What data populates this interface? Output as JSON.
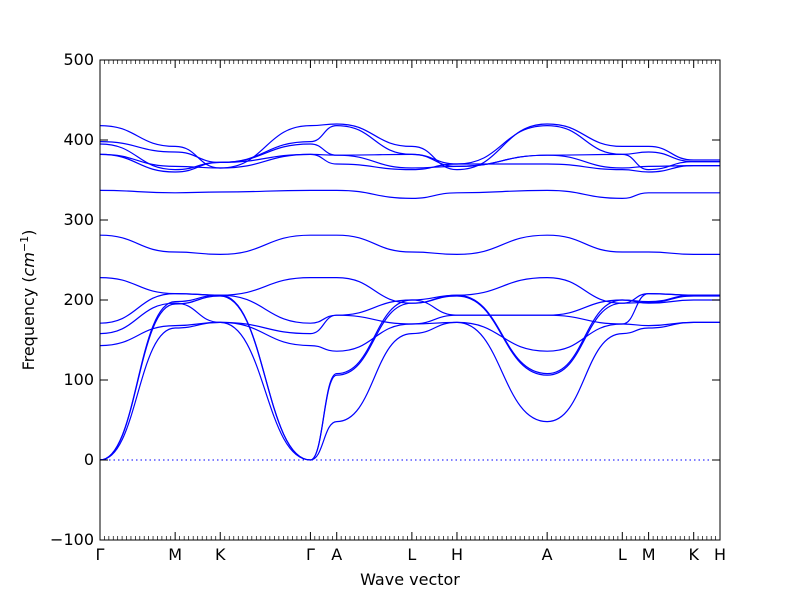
{
  "chart_data": {
    "type": "line",
    "title": "",
    "xlabel": "Wave vector",
    "ylabel": "Frequency ($cm^{-1}$)",
    "ylabel_text": "Frequency (",
    "ylabel_unit": "cm",
    "ylabel_exp": "−1",
    "ylabel_close": ")",
    "ylim": [
      -100,
      500
    ],
    "yticks": [
      -100,
      0,
      100,
      200,
      300,
      400,
      500
    ],
    "grid": false,
    "legend": "none",
    "color": "#0000ff",
    "x_ticks": [
      {
        "label": "Γ",
        "x": 0.0
      },
      {
        "label": "M",
        "x": 0.2
      },
      {
        "label": "K",
        "x": 0.32
      },
      {
        "label": "Γ",
        "x": 0.56
      },
      {
        "label": "A",
        "x": 0.63
      },
      {
        "label": "L",
        "x": 0.83
      },
      {
        "label": "H",
        "x": 0.95
      },
      {
        "label": "A",
        "x": 1.19
      },
      {
        "label": "L",
        "x": 1.39
      },
      {
        "label": "M",
        "x": 1.46
      },
      {
        "label": "K",
        "x": 1.58
      },
      {
        "label": "H",
        "x": 1.65
      }
    ],
    "x": [
      0.0,
      0.2,
      0.32,
      0.56,
      0.63,
      0.83,
      0.95,
      1.19,
      1.39,
      1.46,
      1.58,
      1.65
    ],
    "series": [
      {
        "values": [
          0,
          165,
          172,
          0,
          48,
          158,
          172,
          48,
          158,
          165,
          172,
          172
        ]
      },
      {
        "values": [
          0,
          195,
          205,
          0,
          106,
          196,
          205,
          106,
          196,
          197,
          205,
          205
        ]
      },
      {
        "values": [
          0,
          198,
          206,
          0,
          108,
          200,
          206,
          108,
          200,
          198,
          206,
          206
        ]
      },
      {
        "values": [
          143,
          168,
          172,
          143,
          136,
          170,
          172,
          136,
          170,
          168,
          172,
          172
        ]
      },
      {
        "values": [
          158,
          196,
          172,
          158,
          181,
          200,
          181,
          181,
          200,
          196,
          200,
          200
        ]
      },
      {
        "values": [
          171,
          208,
          206,
          171,
          181,
          170,
          181,
          181,
          170,
          208,
          206,
          206
        ]
      },
      {
        "values": [
          228,
          208,
          206,
          228,
          228,
          196,
          206,
          228,
          196,
          208,
          206,
          206
        ]
      },
      {
        "values": [
          281,
          260,
          257,
          281,
          281,
          260,
          257,
          281,
          260,
          260,
          257,
          257
        ]
      },
      {
        "values": [
          337,
          334,
          335,
          337,
          337,
          327,
          334,
          337,
          327,
          334,
          334,
          334
        ]
      },
      {
        "values": [
          382,
          360,
          372,
          382,
          370,
          363,
          370,
          370,
          363,
          360,
          368,
          368
        ]
      },
      {
        "values": [
          382,
          367,
          365,
          382,
          381,
          365,
          367,
          381,
          365,
          367,
          368,
          368
        ]
      },
      {
        "values": [
          395,
          363,
          372,
          395,
          381,
          382,
          367,
          381,
          382,
          363,
          373,
          373
        ]
      },
      {
        "values": [
          398,
          385,
          372,
          398,
          418,
          382,
          370,
          418,
          382,
          385,
          373,
          373
        ]
      },
      {
        "values": [
          418,
          392,
          365,
          418,
          420,
          392,
          363,
          420,
          392,
          392,
          375,
          375
        ]
      }
    ]
  }
}
